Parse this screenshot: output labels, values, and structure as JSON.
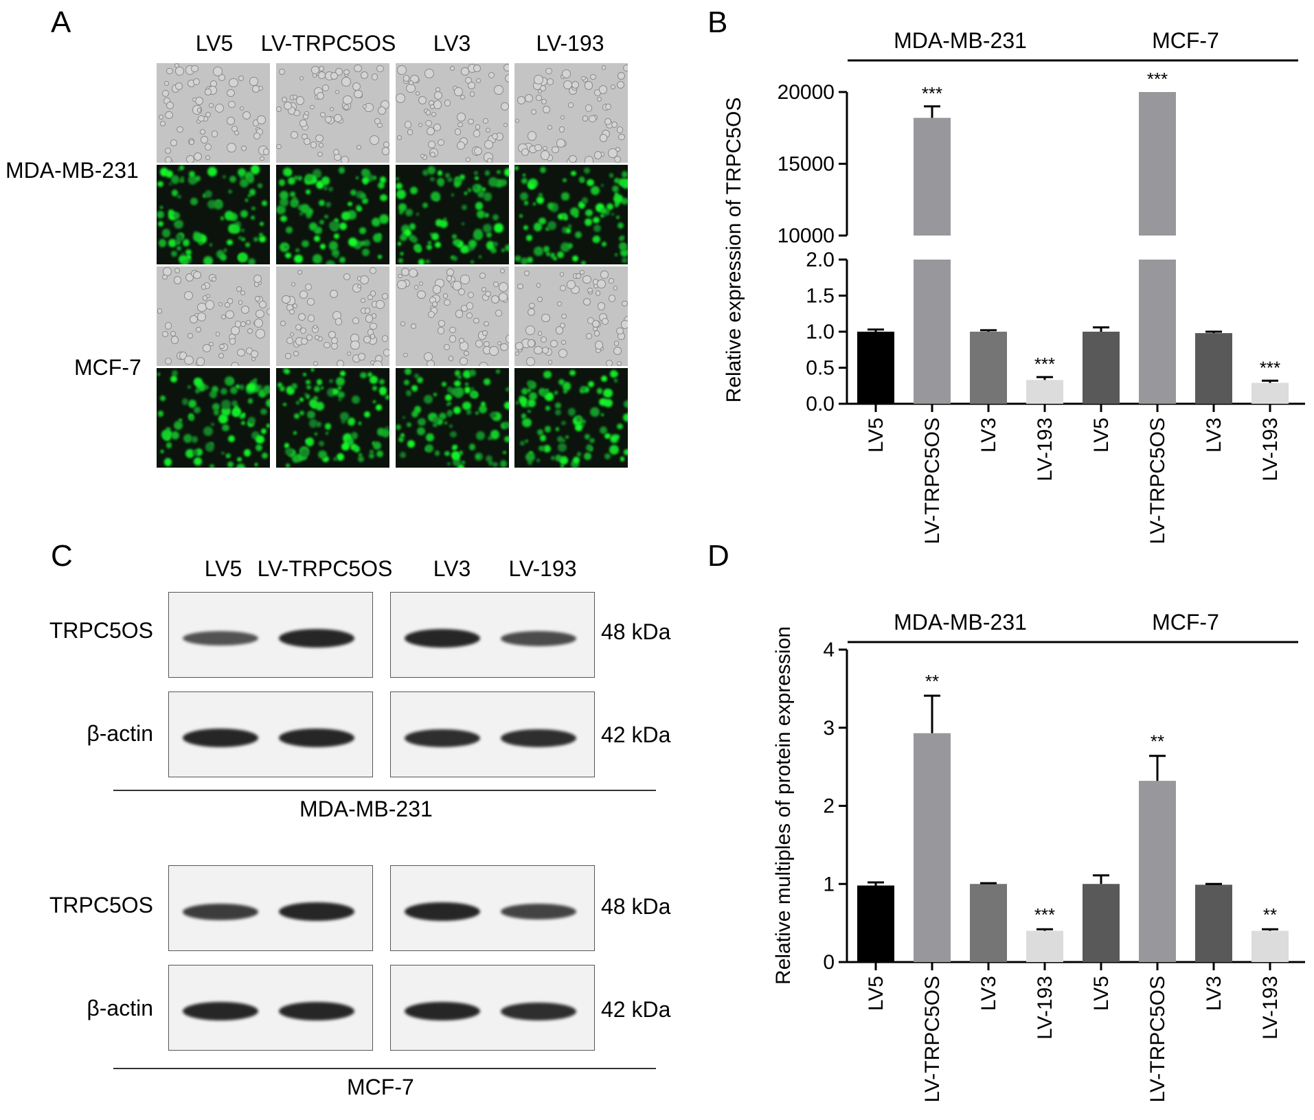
{
  "panelA": {
    "letter": "A",
    "columns": [
      "LV5",
      "LV-TRPC5OS",
      "LV3",
      "LV-193"
    ],
    "rows": [
      "MDA-MB-231",
      "MCF-7"
    ]
  },
  "panelC": {
    "letter": "C",
    "columns": [
      "LV5",
      "LV-TRPC5OS",
      "LV3",
      "LV-193"
    ],
    "proteins": [
      "TRPC5OS",
      "β-actin"
    ],
    "sizes": [
      "48 kDa",
      "42 kDa"
    ],
    "cell_lines": [
      "MDA-MB-231",
      "MCF-7"
    ],
    "mda_band_strength": {
      "trpc5os": [
        0.55,
        0.85,
        0.85,
        0.6
      ],
      "actin": [
        0.85,
        0.85,
        0.8,
        0.8
      ]
    },
    "mcf_band_strength": {
      "trpc5os": [
        0.7,
        0.85,
        0.85,
        0.65
      ],
      "actin": [
        0.85,
        0.85,
        0.85,
        0.8
      ]
    }
  },
  "chart_data": [
    {
      "panel": "B",
      "type": "bar",
      "ylabel": "Relative expression of TRPC5OS",
      "categories": [
        "LV5",
        "LV-TRPC5OS",
        "LV3",
        "LV-193",
        "LV5",
        "LV-TRPC5OS",
        "LV3",
        "LV-193"
      ],
      "groups": [
        {
          "label": "MDA-MB-231",
          "span": [
            0,
            3
          ]
        },
        {
          "label": "MCF-7",
          "span": [
            4,
            7
          ]
        }
      ],
      "values": [
        1.0,
        18200,
        1.0,
        0.33,
        1.0,
        20000,
        0.98,
        0.29
      ],
      "errors": [
        0.03,
        800,
        0.02,
        0.04,
        0.06,
        0,
        0.02,
        0.03
      ],
      "significance": [
        "",
        "***",
        "",
        "***",
        "",
        "***",
        "",
        "***"
      ],
      "colors": [
        "#000000",
        "#98989c",
        "#757575",
        "#dcdcdc",
        "#595959",
        "#98989c",
        "#595959",
        "#dcdcdc"
      ],
      "axis_break": {
        "lower_range": [
          0,
          2.0
        ],
        "upper_range": [
          10000,
          20000
        ]
      },
      "lower_ticks": [
        "0.0",
        "0.5",
        "1.0",
        "1.5",
        "2.0"
      ],
      "upper_ticks": [
        "10000",
        "15000",
        "20000"
      ]
    },
    {
      "panel": "D",
      "type": "bar",
      "ylabel": "Relative multiples of protein expression",
      "categories": [
        "LV5",
        "LV-TRPC5OS",
        "LV3",
        "LV-193",
        "LV5",
        "LV-TRPC5OS",
        "LV3",
        "LV-193"
      ],
      "groups": [
        {
          "label": "MDA-MB-231",
          "span": [
            0,
            3
          ]
        },
        {
          "label": "MCF-7",
          "span": [
            4,
            7
          ]
        }
      ],
      "values": [
        0.98,
        2.93,
        1.0,
        0.4,
        1.0,
        2.32,
        0.99,
        0.4
      ],
      "errors": [
        0.04,
        0.48,
        0.01,
        0.02,
        0.11,
        0.32,
        0.01,
        0.02
      ],
      "significance": [
        "",
        "**",
        "",
        "***",
        "",
        "**",
        "",
        "**"
      ],
      "colors": [
        "#000000",
        "#98989c",
        "#757575",
        "#dcdcdc",
        "#595959",
        "#98989c",
        "#595959",
        "#dcdcdc"
      ],
      "ylim": [
        0,
        4
      ],
      "ticks": [
        "0",
        "1",
        "2",
        "3",
        "4"
      ]
    }
  ]
}
